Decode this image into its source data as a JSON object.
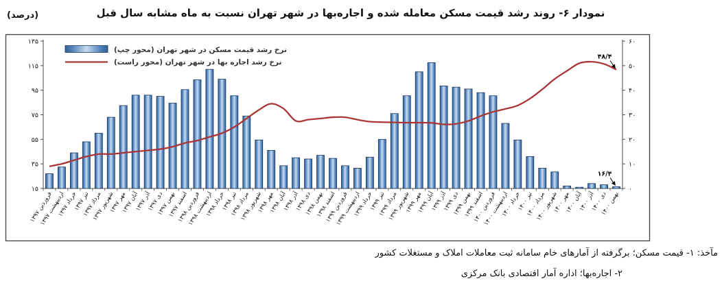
{
  "title": "نمودار ۶- روند رشد قیمت مسکن معامله شده و اجاره‌بها در شهر تهران نسبت به ماه مشابه سال قبل",
  "unit_label": "(درصد)",
  "legend": {
    "housing": "نرخ رشد قیمت مسکن در شهر تهران (محور چپ)",
    "rent": "نرخ رشد اجاره بها در شهر تهران (محور راست)"
  },
  "annotations": [
    {
      "text": "۴۸/۴",
      "value": 48.4,
      "target": "line_end"
    },
    {
      "text": "۱۶/۴",
      "value": 16.4,
      "target": "last_bar"
    }
  ],
  "footer": {
    "line1": "مآخذ: ۱- قیمت مسکن؛ برگرفته از آمارهای خام سامانه ثبت معاملات املاک و مستغلات کشور",
    "line2": "۲- اجاره‌بها؛ اداره آمار اقتصادی بانک مرکزی"
  },
  "colors": {
    "bar_fill": "#4f81bd",
    "bar_fill_light": "#c9dcef",
    "bar_fill_dark": "#35618f",
    "bar_stroke": "#17365d",
    "line": "#a93537",
    "axis": "#4d4d4d",
    "box": "#404040",
    "text": "#1a1a1a"
  },
  "chart_data": {
    "type": "bar",
    "combo": "bar+line",
    "title": "نمودار ۶- روند رشد قیمت مسکن معامله شده و اجاره‌بها در شهر تهران نسبت به ماه مشابه سال قبل",
    "ylabel": "(درصد)",
    "grid": false,
    "legend_position": "top-left-inside",
    "categories": [
      "فروردین ۱۳۹۷",
      "اردیبهشت ۱۳۹۷",
      "خرداد ۱۳۹۷",
      "تیر ۱۳۹۷",
      "مرداد ۱۳۹۷",
      "شهریور ۱۳۹۷",
      "مهر ۱۳۹۷",
      "آبان ۱۳۹۷",
      "آذر ۱۳۹۷",
      "دی ۱۳۹۷",
      "بهمن ۱۳۹۷",
      "اسفند ۱۳۹۷",
      "فروردین ۱۳۹۸",
      "اردیبهشت ۱۳۹۸",
      "خرداد ۱۳۹۸",
      "تیر ۱۳۹۸",
      "مرداد ۱۳۹۸",
      "شهریور ۱۳۹۸",
      "مهر ۱۳۹۸",
      "آبان ۱۳۹۸",
      "آذر ۱۳۹۸",
      "دی ۱۳۹۸",
      "بهمن ۱۳۹۸",
      "اسفند ۱۳۹۸",
      "فروردین ۱۳۹۹",
      "اردیبهشت ۱۳۹۹",
      "خرداد ۱۳۹۹",
      "تیر ۱۳۹۹",
      "مرداد ۱۳۹۹",
      "شهریور ۱۳۹۹",
      "مهر ۱۳۹۹",
      "آبان ۱۳۹۹",
      "آذر ۱۳۹۹",
      "دی ۱۳۹۹",
      "بهمن ۱۳۹۹",
      "اسفند ۱۳۹۹",
      "فروردین ۱۴۰۰",
      "اردیبهشت ۱۴۰۰",
      "خرداد ۱۴۰۰",
      "تیر ۱۴۰۰",
      "مرداد ۱۴۰۰",
      "شهریور ۱۴۰۰",
      "مهر ۱۴۰۰",
      "آبان ۱۴۰۰",
      "آذر ۱۴۰۰",
      "دی ۱۴۰۰",
      "بهمن ۱۴۰۰"
    ],
    "series": [
      {
        "name": "نرخ رشد قیمت مسکن در شهر تهران (محور چپ)",
        "type": "bar",
        "axis": "left",
        "values": [
          27,
          32.5,
          44,
          53,
          60,
          73,
          82.5,
          91,
          91,
          90,
          84.5,
          95.5,
          103.5,
          112,
          104,
          90.5,
          74,
          54.5,
          46,
          33.5,
          40,
          39,
          42,
          39.5,
          33.5,
          31.5,
          40.5,
          55,
          76,
          90.5,
          110,
          117.5,
          98.5,
          97.5,
          96,
          93,
          90.5,
          68,
          54.5,
          41,
          31.5,
          28.5,
          17,
          16,
          19,
          18,
          16.4
        ]
      },
      {
        "name": "نرخ رشد اجاره بها در شهر تهران (محور راست)",
        "type": "line",
        "axis": "right",
        "values": [
          9,
          10,
          11.5,
          13,
          14,
          14,
          14.5,
          15,
          15.5,
          16,
          17,
          18.5,
          19.5,
          21,
          22.5,
          25,
          28.5,
          32,
          34.5,
          32.5,
          27.5,
          28,
          28.5,
          29,
          29,
          28,
          27.2,
          27,
          26.9,
          26.8,
          26.8,
          26.7,
          26.1,
          26.3,
          27.5,
          29.5,
          31.2,
          32.4,
          33.8,
          36.6,
          40.4,
          44.6,
          47.9,
          51,
          51.6,
          50.7,
          48.4
        ]
      }
    ],
    "left_axis": {
      "min": 15,
      "max": 135,
      "step": 20,
      "tick_labels": [
        "۱۵",
        "۳۵",
        "۵۵",
        "۷۵",
        "۹۵",
        "۱۱۵",
        "۱۳۵"
      ]
    },
    "right_axis": {
      "min": 0,
      "max": 60,
      "step": 10,
      "tick_labels": [
        "۰",
        "۱۰",
        "۲۰",
        "۳۰",
        "۴۰",
        "۵۰",
        "۶۰"
      ]
    }
  }
}
